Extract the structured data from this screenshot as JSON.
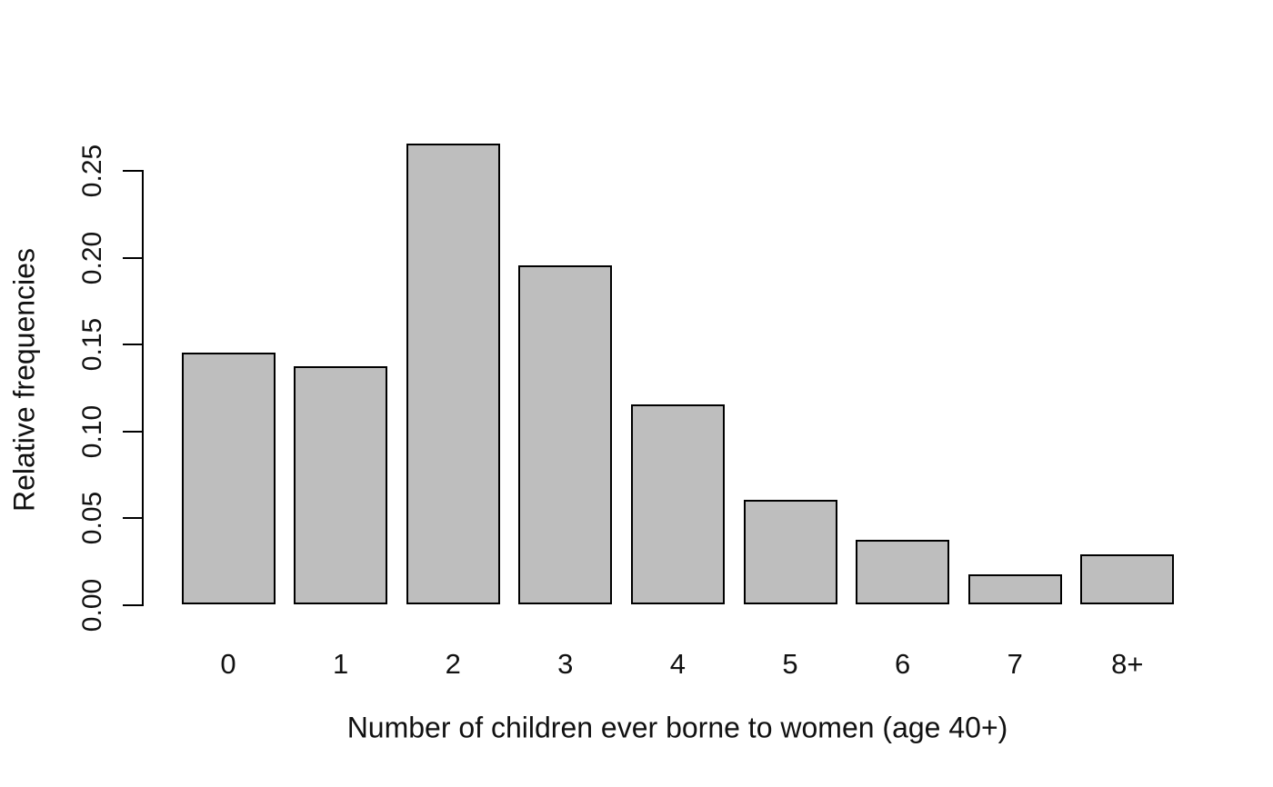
{
  "chart_data": {
    "type": "bar",
    "categories": [
      "0",
      "1",
      "2",
      "3",
      "4",
      "5",
      "6",
      "7",
      "8+"
    ],
    "values": [
      0.145,
      0.137,
      0.265,
      0.195,
      0.115,
      0.06,
      0.037,
      0.017,
      0.029
    ],
    "title": "",
    "xlabel": "Number of children ever borne to women (age 40+)",
    "ylabel": "Relative frequencies",
    "ytick_labels": [
      "0.00",
      "0.05",
      "0.10",
      "0.15",
      "0.20",
      "0.25"
    ],
    "yticks": [
      0.0,
      0.05,
      0.1,
      0.15,
      0.2,
      0.25
    ],
    "ylim": [
      0,
      0.25
    ],
    "grid": false,
    "legend": null,
    "colors": {
      "bar_fill": "#bebebe",
      "bar_border": "#000000",
      "axis": "#000000",
      "text": "#111111",
      "background": "#ffffff"
    }
  }
}
